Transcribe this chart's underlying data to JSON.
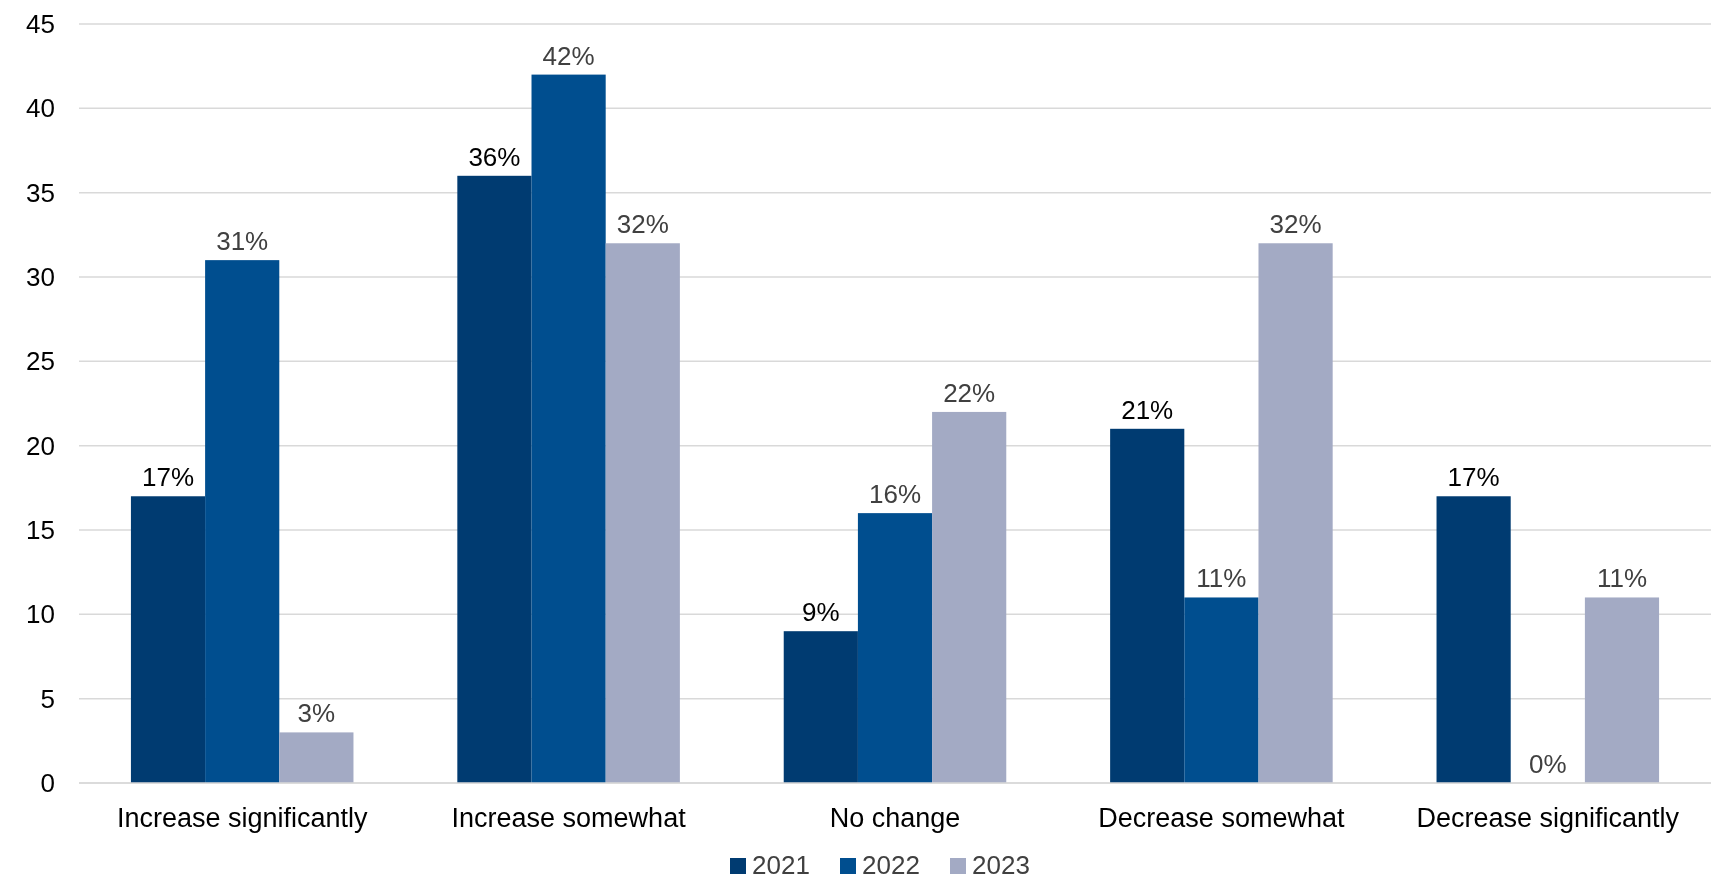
{
  "chart_data": {
    "type": "bar",
    "categories": [
      "Increase significantly",
      "Increase somewhat",
      "No change",
      "Decrease somewhat",
      "Decrease significantly"
    ],
    "series": [
      {
        "name": "2021",
        "color": "#003b71",
        "values": [
          17,
          36,
          9,
          21,
          17
        ],
        "value_labels": [
          "17%",
          "36%",
          "9%",
          "21%",
          "17%"
        ]
      },
      {
        "name": "2022",
        "color": "#004e8f",
        "values": [
          31,
          42,
          16,
          11,
          0
        ],
        "value_labels": [
          "31%",
          "42%",
          "16%",
          "11%",
          "0%"
        ]
      },
      {
        "name": "2023",
        "color": "#a3aac4",
        "values": [
          3,
          32,
          22,
          32,
          11
        ],
        "value_labels": [
          "3%",
          "32%",
          "22%",
          "32%",
          "11%"
        ]
      }
    ],
    "ylim": [
      0,
      45
    ],
    "yticks": [
      0,
      5,
      10,
      15,
      20,
      25,
      30,
      35,
      40,
      45
    ],
    "grid": "y",
    "legend": "bottom"
  }
}
